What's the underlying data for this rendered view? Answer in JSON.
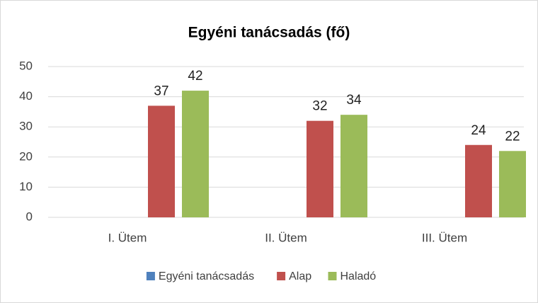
{
  "chart_data": {
    "type": "bar",
    "title": "Egyéni tanácsadás (fő)",
    "categories": [
      "I. Ütem",
      "II. Ütem",
      "III. Ütem"
    ],
    "series": [
      {
        "name": "Egyéni tanácsadás",
        "color": "#4f81bd",
        "values": [
          null,
          null,
          null
        ]
      },
      {
        "name": "Alap",
        "color": "#c0504d",
        "values": [
          37,
          32,
          24
        ]
      },
      {
        "name": "Haladó",
        "color": "#9bbb59",
        "values": [
          42,
          34,
          22
        ]
      }
    ],
    "ylim": [
      0,
      50
    ],
    "yticks": [
      0,
      10,
      20,
      30,
      40,
      50
    ],
    "grid": true,
    "legend": "bottom"
  }
}
